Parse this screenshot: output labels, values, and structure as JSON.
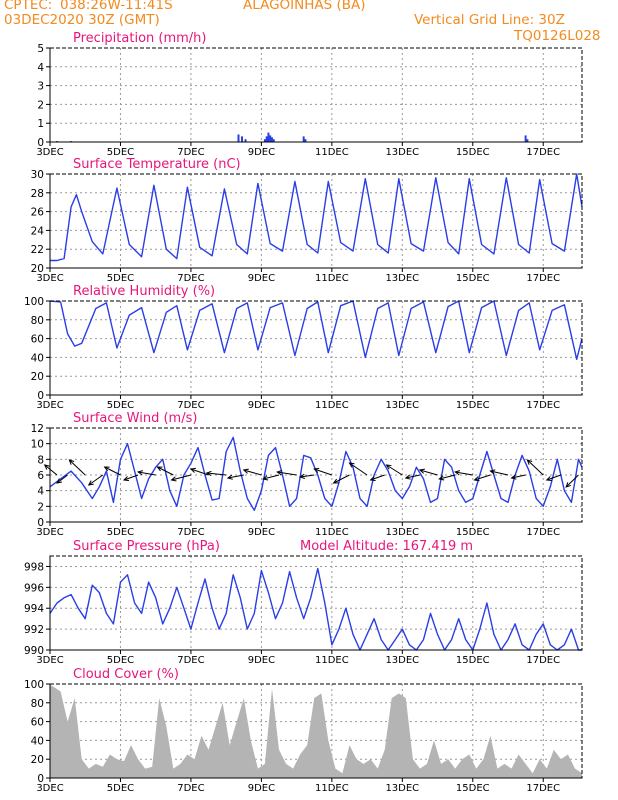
{
  "header": {
    "source": "CPTEC:",
    "coords": "038:26W-11:41S",
    "location": "ALAGOINHAS (BA)",
    "run_time": "03DEC2020 30Z (GMT)",
    "grid_note": "Vertical Grid Line: 30Z",
    "model_id": "TQ0126L028",
    "color": "#f28b20"
  },
  "colors": {
    "title": "#e8157a",
    "line": "#2a3ee6",
    "cloud": "#b4b4b4",
    "axis": "#000000"
  },
  "x_axis": {
    "tick_labels": [
      "3DEC",
      "5DEC",
      "7DEC",
      "9DEC",
      "11DEC",
      "13DEC",
      "15DEC",
      "17DEC"
    ],
    "tick_days": [
      3,
      5,
      7,
      9,
      11,
      13,
      15,
      17
    ],
    "start_day": 3,
    "end_day": 18.1
  },
  "chart_data": [
    {
      "type": "bar",
      "title": "Precipitation (mm/h)",
      "ylim": [
        0,
        5
      ],
      "yticks": [
        0,
        1,
        2,
        3,
        4,
        5
      ],
      "x": [
        3.2,
        3.6,
        8.35,
        8.45,
        8.55,
        9.1,
        9.15,
        9.2,
        9.25,
        9.3,
        9.35,
        10.2,
        10.25,
        16.5,
        16.55
      ],
      "values": [
        0.05,
        0.05,
        0.4,
        0.3,
        0.15,
        0.15,
        0.3,
        0.5,
        0.35,
        0.25,
        0.15,
        0.3,
        0.15,
        0.35,
        0.15
      ]
    },
    {
      "type": "line",
      "title": "Surface Temperature (nC)",
      "ylim": [
        20,
        30
      ],
      "yticks": [
        20,
        22,
        24,
        26,
        28,
        30
      ],
      "x": [
        3.0,
        3.2,
        3.4,
        3.6,
        3.75,
        3.9,
        4.2,
        4.5,
        4.9,
        5.25,
        5.6,
        5.95,
        6.3,
        6.6,
        6.9,
        7.25,
        7.6,
        7.95,
        8.3,
        8.6,
        8.9,
        9.25,
        9.6,
        9.95,
        10.3,
        10.6,
        10.9,
        11.25,
        11.6,
        11.95,
        12.3,
        12.6,
        12.9,
        13.25,
        13.6,
        13.95,
        14.3,
        14.6,
        14.9,
        15.25,
        15.6,
        15.95,
        16.3,
        16.6,
        16.9,
        17.25,
        17.6,
        17.95,
        18.1
      ],
      "values": [
        20.8,
        20.8,
        21.0,
        26.5,
        27.8,
        26.0,
        22.8,
        21.5,
        28.5,
        22.5,
        21.2,
        28.8,
        22.0,
        21.0,
        28.6,
        22.2,
        21.3,
        28.4,
        22.5,
        21.5,
        29.0,
        22.6,
        21.8,
        29.2,
        22.5,
        21.6,
        29.2,
        22.7,
        21.8,
        29.5,
        22.5,
        21.6,
        29.5,
        22.6,
        21.8,
        29.6,
        22.7,
        21.5,
        29.5,
        22.5,
        21.5,
        29.6,
        22.5,
        21.6,
        29.4,
        22.6,
        21.8,
        30.0,
        26.5
      ]
    },
    {
      "type": "line",
      "title": "Relative Humidity (%)",
      "ylim": [
        0,
        100
      ],
      "yticks": [
        0,
        20,
        40,
        60,
        80,
        100
      ],
      "x": [
        3.0,
        3.3,
        3.5,
        3.7,
        3.9,
        4.3,
        4.6,
        4.9,
        5.25,
        5.6,
        5.95,
        6.3,
        6.6,
        6.9,
        7.25,
        7.6,
        7.95,
        8.3,
        8.6,
        8.9,
        9.25,
        9.6,
        9.95,
        10.3,
        10.6,
        10.9,
        11.25,
        11.6,
        11.95,
        12.3,
        12.6,
        12.9,
        13.25,
        13.6,
        13.95,
        14.3,
        14.6,
        14.9,
        15.25,
        15.6,
        15.95,
        16.3,
        16.6,
        16.9,
        17.25,
        17.6,
        17.95,
        18.1
      ],
      "values": [
        100,
        99,
        65,
        52,
        55,
        92,
        98,
        50,
        85,
        93,
        45,
        88,
        95,
        48,
        90,
        97,
        45,
        92,
        98,
        48,
        93,
        98,
        42,
        92,
        99,
        45,
        95,
        100,
        40,
        92,
        98,
        42,
        92,
        99,
        45,
        94,
        100,
        45,
        93,
        100,
        42,
        90,
        98,
        48,
        90,
        96,
        38,
        60
      ]
    },
    {
      "type": "line",
      "title": "Surface Wind (m/s)",
      "ylim": [
        0,
        12
      ],
      "yticks": [
        0,
        2,
        4,
        6,
        8,
        10,
        12
      ],
      "x": [
        3.0,
        3.3,
        3.6,
        3.9,
        4.2,
        4.4,
        4.6,
        4.8,
        5.0,
        5.2,
        5.4,
        5.6,
        5.8,
        6.0,
        6.2,
        6.4,
        6.6,
        6.8,
        7.0,
        7.2,
        7.4,
        7.6,
        7.8,
        8.0,
        8.2,
        8.4,
        8.6,
        8.8,
        9.0,
        9.2,
        9.4,
        9.6,
        9.8,
        10.0,
        10.2,
        10.4,
        10.6,
        10.8,
        11.0,
        11.2,
        11.4,
        11.6,
        11.8,
        12.0,
        12.2,
        12.4,
        12.6,
        12.8,
        13.0,
        13.2,
        13.4,
        13.6,
        13.8,
        14.0,
        14.2,
        14.4,
        14.6,
        14.8,
        15.0,
        15.2,
        15.4,
        15.6,
        15.8,
        16.0,
        16.2,
        16.4,
        16.6,
        16.8,
        17.0,
        17.2,
        17.4,
        17.6,
        17.8,
        18.0,
        18.1
      ],
      "values": [
        4.5,
        5.5,
        6.5,
        5.0,
        3.0,
        4.5,
        6.5,
        2.5,
        8.0,
        10.0,
        6.5,
        3.0,
        5.5,
        7.0,
        8.0,
        4.0,
        2.0,
        6.0,
        7.5,
        9.5,
        6.0,
        2.8,
        3.0,
        9.0,
        10.8,
        6.5,
        3.0,
        1.5,
        4.0,
        8.5,
        9.5,
        6.0,
        2.0,
        3.0,
        8.5,
        8.2,
        6.0,
        3.0,
        2.0,
        5.0,
        9.0,
        7.0,
        3.0,
        2.0,
        6.0,
        8.0,
        6.5,
        4.0,
        3.0,
        4.5,
        7.0,
        5.5,
        2.5,
        3.0,
        8.0,
        7.0,
        4.0,
        2.5,
        3.0,
        6.0,
        9.0,
        6.0,
        3.0,
        2.5,
        6.0,
        8.5,
        6.5,
        3.0,
        2.0,
        4.5,
        8.0,
        4.0,
        2.5,
        8.0,
        7.0
      ],
      "vectors": {
        "x": [
          3.2,
          3.5,
          4.0,
          4.5,
          5.0,
          5.5,
          6.0,
          6.5,
          7.0,
          7.5,
          8.0,
          8.5,
          9.0,
          9.5,
          10.0,
          10.5,
          11.0,
          11.5,
          12.0,
          12.5,
          13.0,
          13.5,
          14.0,
          14.5,
          15.0,
          15.5,
          16.0,
          16.5,
          17.0,
          17.5,
          18.0
        ],
        "dx": [
          -0.35,
          -0.3,
          -0.45,
          -0.4,
          -0.45,
          -0.4,
          -0.5,
          -0.45,
          -0.55,
          -0.5,
          -0.55,
          -0.45,
          -0.5,
          -0.45,
          -0.55,
          -0.4,
          -0.5,
          -0.45,
          -0.5,
          -0.4,
          -0.45,
          -0.4,
          -0.5,
          -0.45,
          -0.5,
          -0.45,
          -0.5,
          -0.4,
          -0.45,
          -0.4,
          -0.35
        ],
        "dy": [
          1.0,
          -0.8,
          1.5,
          -1.0,
          0.8,
          -0.5,
          0.3,
          0.8,
          -0.5,
          0.6,
          0.2,
          -0.3,
          0.5,
          -0.4,
          0.3,
          -0.2,
          0.6,
          -0.8,
          1.2,
          -0.5,
          1.0,
          -0.3,
          0.5,
          -0.4,
          0.3,
          -0.5,
          0.4,
          -0.3,
          1.5,
          -0.5,
          -1.2
        ]
      }
    },
    {
      "type": "line",
      "title": "Surface Pressure (hPa)",
      "annotation": "Model Altitude: 167.419 m",
      "ylim": [
        990,
        999
      ],
      "yticks": [
        990,
        992,
        994,
        996,
        998
      ],
      "x": [
        3.0,
        3.2,
        3.4,
        3.6,
        3.8,
        4.0,
        4.2,
        4.4,
        4.6,
        4.8,
        5.0,
        5.2,
        5.4,
        5.6,
        5.8,
        6.0,
        6.2,
        6.4,
        6.6,
        6.8,
        7.0,
        7.2,
        7.4,
        7.6,
        7.8,
        8.0,
        8.2,
        8.4,
        8.6,
        8.8,
        9.0,
        9.2,
        9.4,
        9.6,
        9.8,
        10.0,
        10.2,
        10.4,
        10.6,
        10.8,
        11.0,
        11.2,
        11.4,
        11.6,
        11.8,
        12.0,
        12.2,
        12.4,
        12.6,
        12.8,
        13.0,
        13.2,
        13.4,
        13.6,
        13.8,
        14.0,
        14.2,
        14.4,
        14.6,
        14.8,
        15.0,
        15.2,
        15.4,
        15.6,
        15.8,
        16.0,
        16.2,
        16.4,
        16.6,
        16.8,
        17.0,
        17.2,
        17.4,
        17.6,
        17.8,
        18.0,
        18.1
      ],
      "values": [
        993.5,
        994.5,
        995.0,
        995.3,
        994.0,
        993.0,
        996.2,
        995.5,
        993.5,
        992.5,
        996.5,
        997.2,
        994.5,
        993.5,
        996.5,
        995.0,
        992.5,
        994.0,
        996.0,
        994.0,
        992.0,
        994.5,
        996.8,
        994.0,
        992.0,
        993.5,
        997.2,
        995.0,
        992.0,
        993.5,
        997.6,
        995.5,
        993.0,
        994.5,
        997.5,
        995.0,
        993.0,
        995.0,
        997.8,
        994.5,
        990.5,
        992.0,
        994.0,
        991.5,
        990.0,
        991.5,
        993.0,
        991.0,
        990.0,
        991.0,
        992.0,
        990.5,
        990.0,
        991.0,
        993.5,
        991.5,
        990.0,
        991.0,
        993.0,
        991.0,
        990.0,
        992.0,
        994.5,
        991.5,
        990.0,
        991.0,
        992.5,
        990.5,
        990.0,
        991.5,
        992.5,
        990.5,
        990.0,
        990.5,
        992.0,
        990.0,
        990.0
      ]
    },
    {
      "type": "area",
      "title": "Cloud Cover (%)",
      "ylim": [
        0,
        100
      ],
      "yticks": [
        0,
        20,
        40,
        60,
        80,
        100
      ],
      "x": [
        3.0,
        3.1,
        3.3,
        3.5,
        3.7,
        3.9,
        4.1,
        4.3,
        4.5,
        4.7,
        4.9,
        5.1,
        5.3,
        5.5,
        5.7,
        5.9,
        6.1,
        6.3,
        6.5,
        6.7,
        6.9,
        7.1,
        7.3,
        7.5,
        7.7,
        7.9,
        8.1,
        8.3,
        8.5,
        8.7,
        8.9,
        9.1,
        9.3,
        9.5,
        9.7,
        9.9,
        10.1,
        10.3,
        10.5,
        10.7,
        10.9,
        11.1,
        11.3,
        11.5,
        11.7,
        11.9,
        12.1,
        12.3,
        12.5,
        12.7,
        12.9,
        13.1,
        13.3,
        13.5,
        13.7,
        13.9,
        14.1,
        14.3,
        14.5,
        14.7,
        14.9,
        15.1,
        15.3,
        15.5,
        15.7,
        15.9,
        16.1,
        16.3,
        16.5,
        16.7,
        16.9,
        17.1,
        17.3,
        17.5,
        17.7,
        17.9,
        18.1
      ],
      "values": [
        99,
        97,
        92,
        60,
        85,
        20,
        10,
        15,
        12,
        25,
        20,
        18,
        35,
        20,
        10,
        12,
        85,
        55,
        10,
        15,
        25,
        20,
        45,
        30,
        55,
        80,
        35,
        60,
        85,
        40,
        10,
        15,
        95,
        30,
        15,
        10,
        25,
        35,
        85,
        90,
        40,
        10,
        5,
        35,
        20,
        15,
        20,
        10,
        30,
        85,
        90,
        85,
        20,
        10,
        15,
        40,
        15,
        20,
        10,
        20,
        25,
        10,
        20,
        45,
        10,
        15,
        10,
        25,
        15,
        5,
        20,
        10,
        30,
        20,
        25,
        10,
        5
      ]
    }
  ]
}
